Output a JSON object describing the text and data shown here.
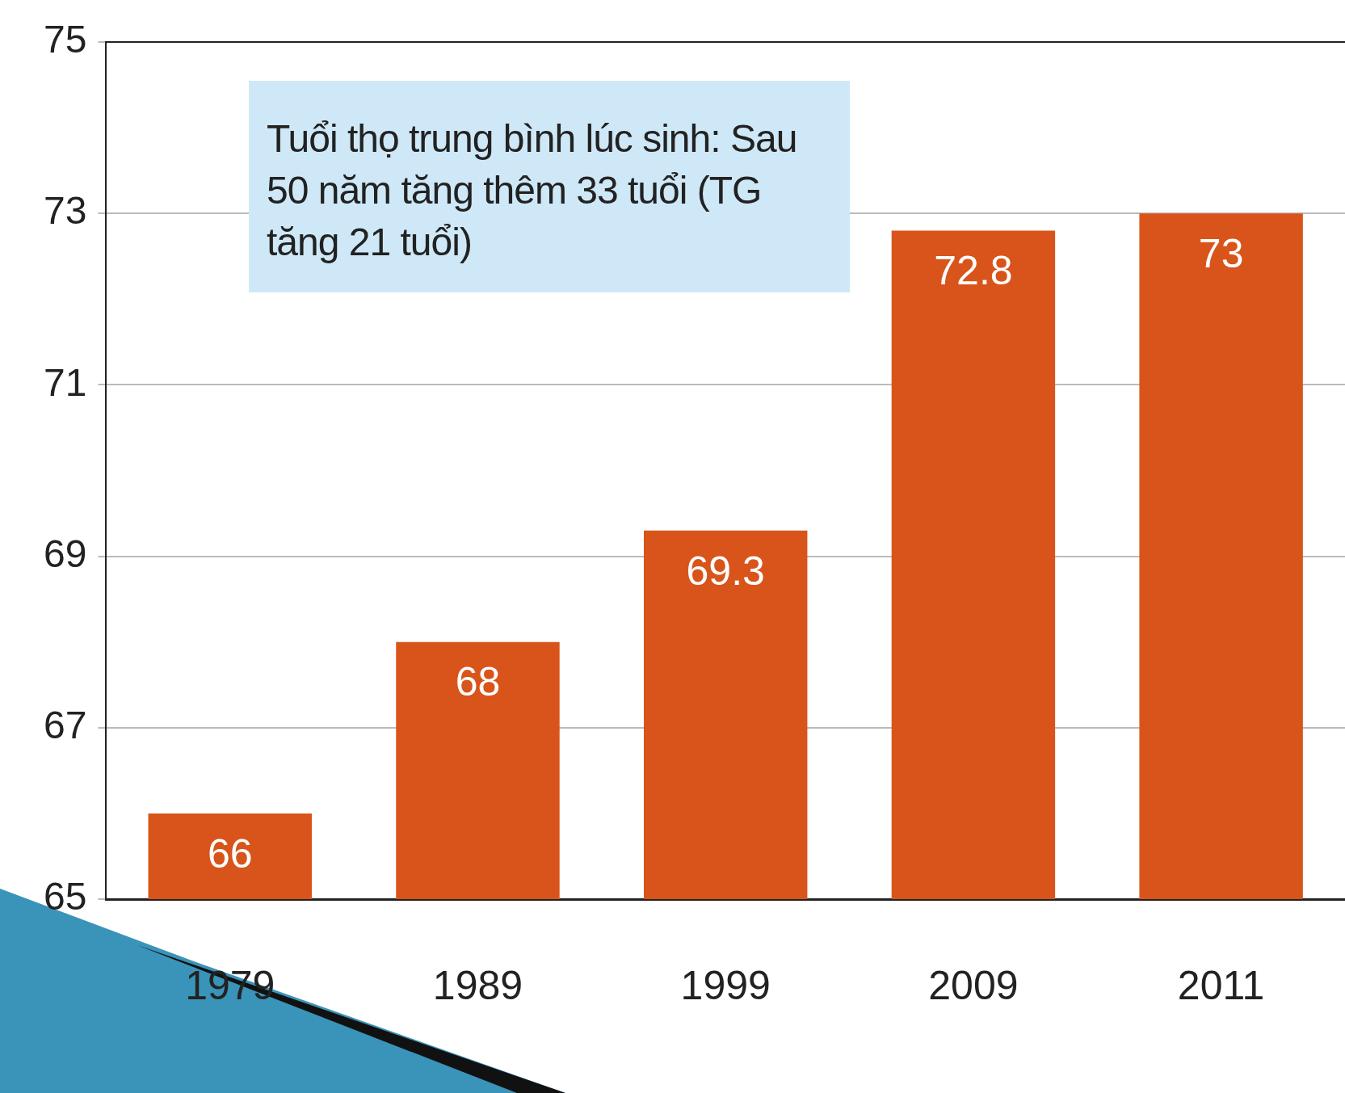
{
  "chart_data": {
    "type": "bar",
    "categories": [
      "1979",
      "1989",
      "1999",
      "2009",
      "2011"
    ],
    "values": [
      66,
      68,
      69.3,
      72.8,
      73
    ],
    "color": "#d9541a",
    "ylim": [
      65,
      75
    ],
    "yticks": [
      65,
      67,
      69,
      71,
      73,
      75
    ],
    "grid": "y",
    "data_labels": true,
    "legend": false,
    "annotations": [
      "Tuổi thọ trung bình lúc sinh: Sau 50 năm tăng thêm 33 tuổi (TG tăng 21 tuổi)"
    ]
  }
}
